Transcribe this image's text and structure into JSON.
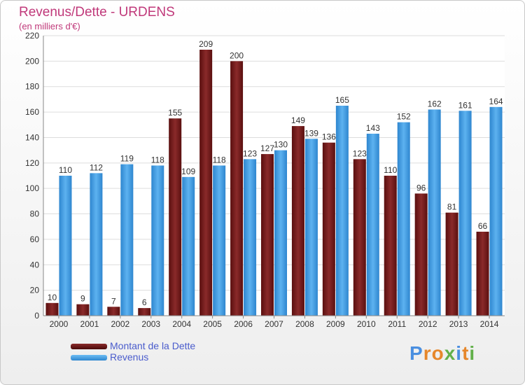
{
  "chart_data": {
    "type": "bar",
    "title": "Revenus/Dette - URDENS",
    "subtitle": "(en milliers d'€)",
    "categories": [
      "2000",
      "2001",
      "2002",
      "2003",
      "2004",
      "2005",
      "2006",
      "2007",
      "2008",
      "2009",
      "2010",
      "2011",
      "2012",
      "2013",
      "2014"
    ],
    "series": [
      {
        "name": "Montant de la Dette",
        "color": "#7a1a1a",
        "values": [
          10,
          9,
          7,
          6,
          155,
          209,
          200,
          127,
          149,
          136,
          123,
          110,
          96,
          81,
          66
        ]
      },
      {
        "name": "Revenus",
        "color": "#3f9ee3",
        "values": [
          110,
          112,
          119,
          118,
          109,
          118,
          123,
          130,
          139,
          165,
          143,
          152,
          162,
          161,
          164
        ]
      }
    ],
    "yticks": [
      0,
      20,
      40,
      60,
      80,
      100,
      120,
      140,
      160,
      180,
      200,
      220
    ],
    "ylim": [
      0,
      220
    ],
    "grid": true,
    "legend_position": "bottom-left"
  },
  "logo": {
    "text": "Proxiti",
    "letters": [
      {
        "ch": "P",
        "color": "#4a8fe0"
      },
      {
        "ch": "r",
        "color": "#e6872b"
      },
      {
        "ch": "o",
        "color": "#e6872b"
      },
      {
        "ch": "x",
        "color": "#62b04a"
      },
      {
        "ch": "i",
        "color": "#4a8fe0"
      },
      {
        "ch": "t",
        "color": "#e6872b"
      },
      {
        "ch": "i",
        "color": "#62b04a"
      }
    ]
  }
}
